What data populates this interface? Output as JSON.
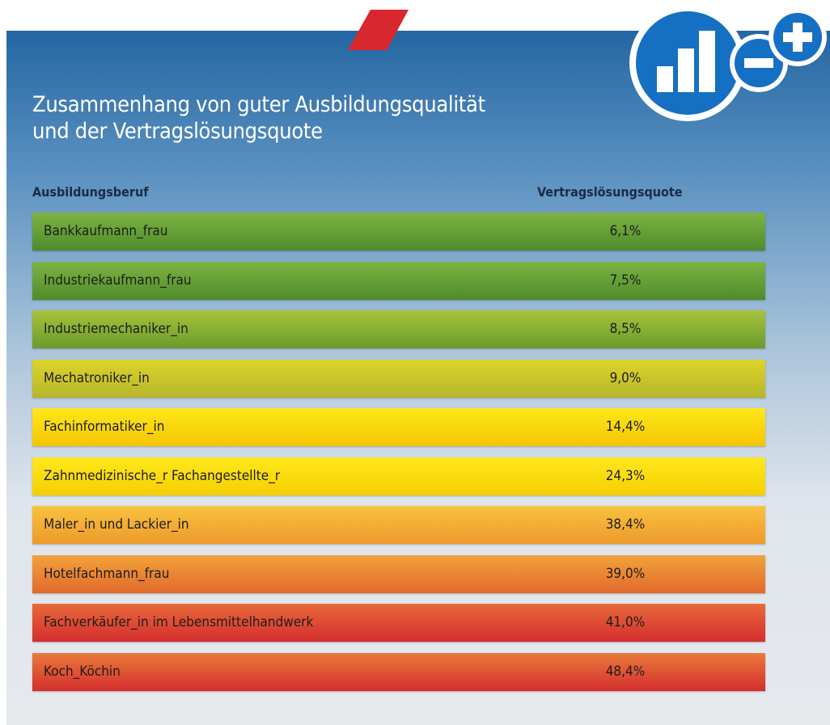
{
  "header": {
    "title_lines": [
      "Zusammenhang von guter Ausbildungsqualität",
      "und der Vertragslösungsquote"
    ]
  },
  "table": {
    "columns": [
      "Ausbildungsberuf",
      "Vertragslösungsquote"
    ],
    "rows": [
      [
        "Bankkaufmann_frau",
        "6,1%"
      ],
      [
        "Industriekaufmann_frau",
        "7,5%"
      ],
      [
        "Industriemechaniker_in",
        "8,5%"
      ],
      [
        "Mechatroniker_in",
        "9,0%"
      ],
      [
        "Fachinformatiker_in",
        "14,4%"
      ],
      [
        "Zahnmedizinische_r Fachangestellte_r",
        "24,3%"
      ],
      [
        "Maler_in und Lackier_in",
        "38,4%"
      ],
      [
        "Hotelfachmann_frau",
        "39,0%"
      ],
      [
        "Fachverkäufer_in im Lebensmittelhandwerk",
        "41,0%"
      ],
      [
        "Koch_Köchin",
        "48,4%"
      ]
    ]
  }
}
